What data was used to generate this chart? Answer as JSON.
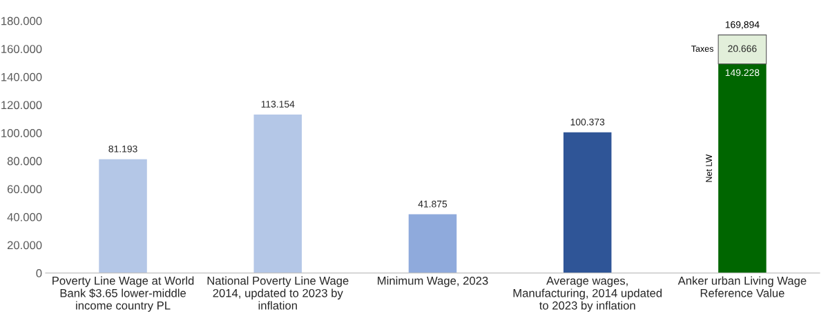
{
  "chart_data": {
    "type": "bar",
    "stacked": true,
    "categories": [
      "Poverty Line Wage at World\nBank $3.65 lower-middle\nincome country PL",
      "National Poverty Line Wage\n2014, updated to 2023 by\ninflation",
      "Minimum Wage, 2023",
      "Average wages,\nManufacturing, 2014 updated\nto 2023 by inflation",
      "Anker urban Living Wage\nReference Value"
    ],
    "series": [
      {
        "colors": [
          "#b4c7e7",
          "#b4c7e7",
          "#8faadc",
          "#2f5597",
          "#2f5597"
        ],
        "values": [
          81.193,
          113.154,
          41.875,
          100.373,
          null
        ],
        "value_labels": [
          "81.193",
          "113.154",
          "41.875",
          "100.373",
          null
        ]
      },
      {
        "name": "Net LW",
        "color": "#006600",
        "values": [
          null,
          null,
          null,
          null,
          149.228
        ],
        "value_labels": [
          null,
          null,
          null,
          null,
          "149.228"
        ]
      },
      {
        "name": "Taxes",
        "color": "#e2efda",
        "values": [
          null,
          null,
          null,
          null,
          20.666
        ],
        "value_labels": [
          null,
          null,
          null,
          null,
          "20.666"
        ]
      }
    ],
    "totals": [
      null,
      null,
      null,
      null,
      "169,894"
    ],
    "ylim": [
      0,
      180
    ],
    "yticks": [
      0,
      {
        "value": 20,
        "label": "20.000"
      },
      {
        "value": 40,
        "label": "40.000"
      },
      {
        "value": 60,
        "label": "60.000"
      },
      {
        "value": 80,
        "label": "80.000"
      },
      {
        "value": 100,
        "label": "100.000"
      },
      {
        "value": 120,
        "label": "120.000"
      },
      {
        "value": 140,
        "label": "140.000"
      },
      {
        "value": 160,
        "label": "160.000"
      },
      {
        "value": 180,
        "label": "180.000"
      }
    ],
    "grid": false
  }
}
